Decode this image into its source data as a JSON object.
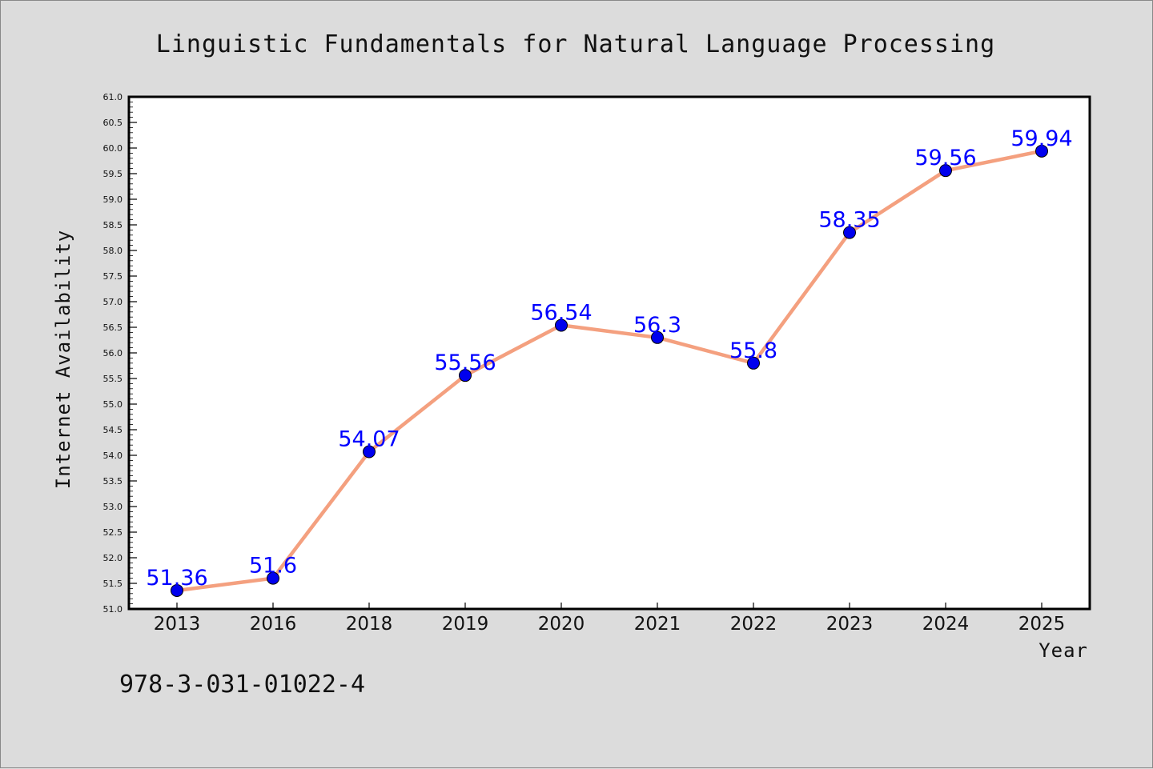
{
  "chart_data": {
    "type": "line",
    "title": "Linguistic Fundamentals for Natural Language Processing",
    "xlabel": "Year",
    "ylabel": "Internet Availability",
    "categories": [
      "2013",
      "2016",
      "2018",
      "2019",
      "2020",
      "2021",
      "2022",
      "2023",
      "2024",
      "2025"
    ],
    "series": [
      {
        "values": [
          51.36,
          51.6,
          54.07,
          55.56,
          56.54,
          56.3,
          55.8,
          58.35,
          59.56,
          59.94
        ],
        "data_labels": [
          "51.36",
          "51.6",
          "54.07",
          "55.56",
          "56.54",
          "56.3",
          "55.8",
          "58.35",
          "59.56",
          "59.94"
        ]
      }
    ],
    "ylim": [
      51.0,
      61.0
    ],
    "yticks": [
      "51.0",
      "51.5",
      "52.0",
      "52.5",
      "53.0",
      "53.5",
      "54.0",
      "54.5",
      "55.0",
      "55.5",
      "56.0",
      "56.5",
      "57.0",
      "57.5",
      "58.0",
      "58.5",
      "59.0",
      "59.5",
      "60.0",
      "60.5",
      "61.0"
    ],
    "grid": false,
    "legend": "none",
    "line_color": "#f4a07f",
    "marker_color": "#0000ee",
    "label_color": "#0000ff"
  },
  "footer": {
    "isbn": "978-3-031-01022-4"
  }
}
